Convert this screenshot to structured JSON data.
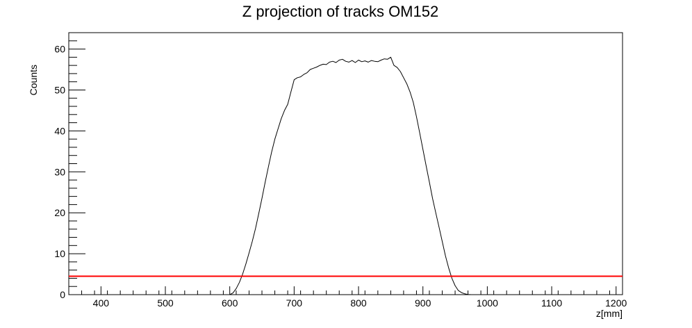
{
  "chart_data": {
    "type": "line",
    "title": "Z projection of tracks OM152",
    "xlabel": "z[mm]",
    "ylabel": "Counts",
    "xlim": [
      350,
      1210
    ],
    "ylim": [
      0,
      64
    ],
    "grid": false,
    "legend": "none",
    "x_ticks": [
      400,
      500,
      600,
      700,
      800,
      900,
      1000,
      1100,
      1200
    ],
    "x_tick_labels": [
      "400",
      "500",
      "600",
      "700",
      "800",
      "900",
      "1000",
      "1100",
      "1200"
    ],
    "y_ticks": [
      0,
      10,
      20,
      30,
      40,
      50,
      60
    ],
    "y_tick_labels": [
      "0",
      "10",
      "20",
      "30",
      "40",
      "50",
      "60"
    ],
    "series": [
      {
        "color": "#000000",
        "x": [
          600,
          605,
          610,
          615,
          620,
          625,
          630,
          635,
          640,
          645,
          650,
          655,
          660,
          665,
          670,
          675,
          680,
          685,
          690,
          695,
          700,
          705,
          710,
          715,
          720,
          725,
          730,
          735,
          740,
          745,
          750,
          755,
          760,
          765,
          770,
          775,
          780,
          785,
          790,
          795,
          800,
          805,
          810,
          815,
          820,
          825,
          830,
          835,
          840,
          845,
          850,
          855,
          860,
          865,
          870,
          875,
          880,
          885,
          890,
          895,
          900,
          905,
          910,
          915,
          920,
          925,
          930,
          935,
          940,
          945,
          950,
          955,
          960,
          965,
          970,
          975,
          980
        ],
        "y": [
          0,
          0.4,
          1.5,
          3.0,
          5.0,
          7.5,
          10.2,
          13.0,
          16.2,
          19.8,
          23.5,
          27.5,
          31.2,
          34.8,
          38.0,
          40.5,
          43.0,
          45.0,
          46.5,
          49.5,
          52.5,
          53.0,
          53.2,
          53.8,
          54.2,
          55.0,
          55.3,
          55.6,
          56.0,
          56.3,
          56.2,
          56.8,
          57.0,
          56.7,
          57.3,
          57.5,
          57.0,
          56.8,
          57.2,
          56.7,
          57.3,
          56.9,
          57.1,
          56.8,
          57.2,
          57.0,
          56.9,
          57.3,
          57.6,
          57.5,
          58.0,
          56.0,
          55.5,
          54.5,
          53.0,
          51.5,
          49.5,
          47.0,
          43.5,
          39.5,
          35.5,
          31.5,
          27.5,
          23.5,
          20.0,
          16.5,
          13.0,
          9.5,
          6.5,
          4.0,
          2.2,
          1.0,
          0.5,
          0.2,
          0.05,
          0,
          0
        ]
      },
      {
        "color": "#ff0000",
        "x": [
          350,
          1210
        ],
        "y": [
          4.5,
          4.5
        ]
      }
    ]
  }
}
